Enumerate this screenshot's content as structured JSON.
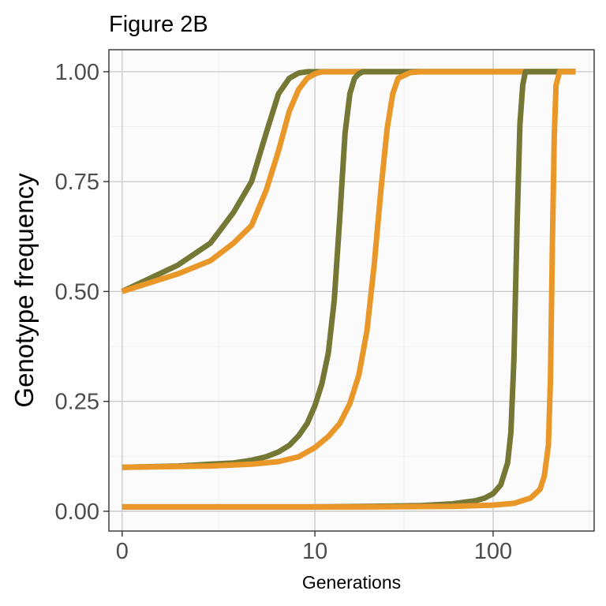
{
  "chart_data": {
    "type": "line",
    "title": "Figure 2B",
    "xlabel": "Generations",
    "ylabel": "Genotype frequency",
    "xscale": "log1p",
    "xlim": [
      0,
      300
    ],
    "ylim": [
      -0.045,
      1.05
    ],
    "grid": true,
    "legend": "none",
    "x_ticks": [
      {
        "value": 0,
        "label": "0"
      },
      {
        "value": 10,
        "label": "10"
      },
      {
        "value": 100,
        "label": "100"
      }
    ],
    "y_ticks": [
      {
        "value": 0,
        "label": "0.00"
      },
      {
        "value": 0.25,
        "label": "0.25"
      },
      {
        "value": 0.5,
        "label": "0.50"
      },
      {
        "value": 0.75,
        "label": "0.75"
      },
      {
        "value": 1,
        "label": "1.00"
      }
    ],
    "colors": {
      "olive": "#747834",
      "orange": "#e89728"
    },
    "series": [
      {
        "color": "#747834",
        "x": [
          0,
          1,
          2,
          3,
          4,
          5,
          6,
          7,
          8,
          9,
          10,
          11,
          12,
          15,
          20,
          30,
          40,
          60,
          100,
          200,
          280
        ],
        "values": [
          0.5,
          0.56,
          0.61,
          0.68,
          0.75,
          0.86,
          0.95,
          0.985,
          0.997,
          1.0,
          1.0,
          1.0,
          1.0,
          1.0,
          1.0,
          1.0,
          1.0,
          1.0,
          1.0,
          1.0,
          1.0
        ]
      },
      {
        "color": "#e89728",
        "x": [
          0,
          1,
          2,
          3,
          4,
          5,
          6,
          7,
          8,
          9,
          10,
          11,
          12,
          15,
          20,
          30,
          40,
          60,
          100,
          200,
          280
        ],
        "values": [
          0.5,
          0.54,
          0.57,
          0.61,
          0.65,
          0.73,
          0.82,
          0.91,
          0.96,
          0.985,
          0.995,
          1.0,
          1.0,
          1.0,
          1.0,
          1.0,
          1.0,
          1.0,
          1.0,
          1.0,
          1.0
        ]
      },
      {
        "color": "#747834",
        "x": [
          0,
          1,
          2,
          3,
          4,
          5,
          6,
          7,
          8,
          9,
          10,
          11,
          12,
          13,
          14,
          15,
          16,
          17,
          18,
          19,
          20,
          22,
          25,
          30,
          40,
          60,
          100,
          200,
          280
        ],
        "values": [
          0.1,
          0.103,
          0.107,
          0.11,
          0.116,
          0.124,
          0.135,
          0.15,
          0.172,
          0.2,
          0.24,
          0.29,
          0.36,
          0.48,
          0.67,
          0.86,
          0.95,
          0.985,
          0.995,
          1.0,
          1.0,
          1.0,
          1.0,
          1.0,
          1.0,
          1.0,
          1.0,
          1.0,
          1.0
        ]
      },
      {
        "color": "#e89728",
        "x": [
          0,
          2,
          4,
          6,
          8,
          10,
          12,
          14,
          16,
          18,
          20,
          22,
          24,
          26,
          28,
          30,
          35,
          40,
          60,
          100,
          200,
          280
        ],
        "values": [
          0.1,
          0.103,
          0.107,
          0.113,
          0.124,
          0.145,
          0.17,
          0.2,
          0.245,
          0.31,
          0.41,
          0.56,
          0.73,
          0.87,
          0.95,
          0.985,
          0.998,
          1.0,
          1.0,
          1.0,
          1.0,
          1.0
        ]
      },
      {
        "color": "#747834",
        "x": [
          0,
          10,
          20,
          40,
          60,
          80,
          90,
          100,
          110,
          120,
          125,
          130,
          135,
          140,
          145,
          150,
          200,
          280
        ],
        "values": [
          0.01,
          0.01,
          0.011,
          0.013,
          0.017,
          0.024,
          0.03,
          0.04,
          0.06,
          0.11,
          0.18,
          0.35,
          0.65,
          0.88,
          0.97,
          1.0,
          1.0,
          1.0
        ],
        "note_hidden": false
      },
      {
        "color": "#e89728",
        "x": [
          0,
          20,
          60,
          100,
          130,
          160,
          180,
          190,
          200,
          205,
          210,
          215,
          220,
          230,
          280
        ],
        "values": [
          0.01,
          0.01,
          0.011,
          0.014,
          0.018,
          0.03,
          0.05,
          0.08,
          0.15,
          0.3,
          0.6,
          0.85,
          0.97,
          1.0,
          1.0
        ]
      }
    ]
  }
}
